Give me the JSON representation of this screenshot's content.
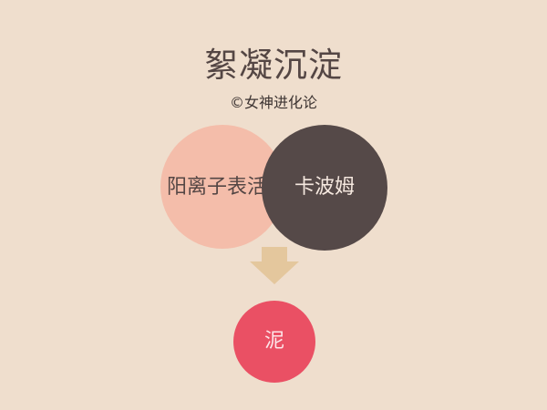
{
  "title": "絮凝沉淀",
  "credit": "©女神进化论",
  "nodes": {
    "cation": {
      "label": "阳离子表活",
      "color": "#f4bdaa"
    },
    "carbomer": {
      "label": "卡波姆",
      "color": "#554948"
    },
    "result": {
      "label": "泥",
      "color": "#ea5064"
    }
  },
  "arrow": {
    "icon": "down-arrow-icon",
    "color": "#e4c79d"
  },
  "colors": {
    "background": "#efdecd",
    "text": "#544644"
  }
}
